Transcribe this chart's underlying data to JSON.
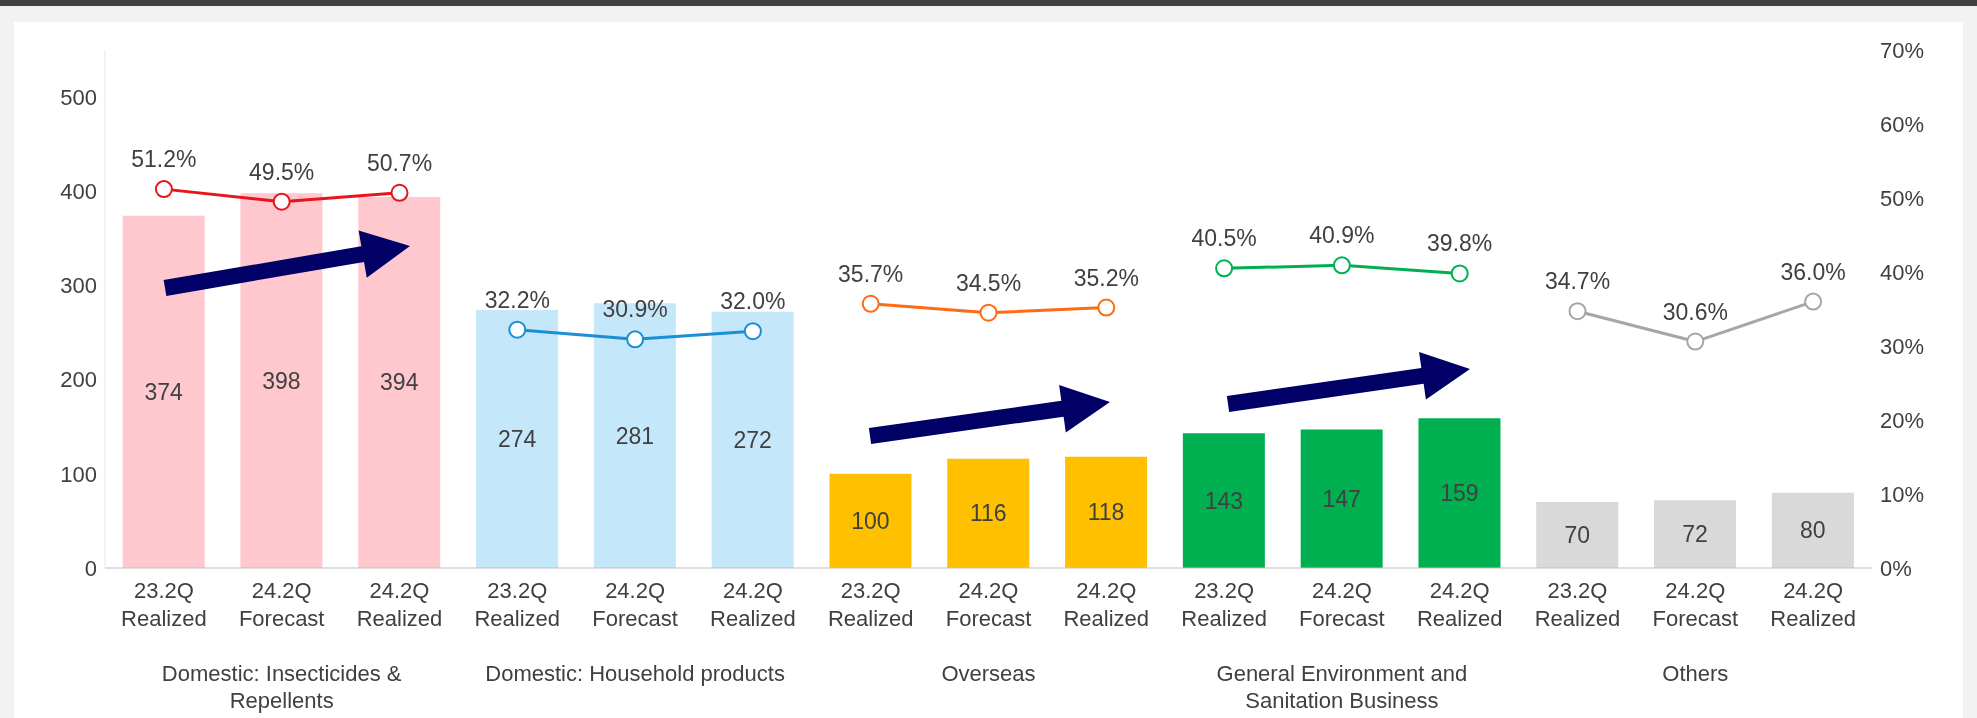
{
  "chart_data": {
    "type": "bar",
    "categories": [
      "23.2Q Realized",
      "24.2Q Forecast",
      "24.2Q Realized",
      "23.2Q Realized",
      "24.2Q Forecast",
      "24.2Q Realized",
      "23.2Q Realized",
      "24.2Q Forecast",
      "24.2Q Realized",
      "23.2Q Realized",
      "24.2Q Forecast",
      "24.2Q Realized",
      "23.2Q Realized",
      "24.2Q Forecast",
      "24.2Q Realized"
    ],
    "series": [
      {
        "values": [
          374,
          398,
          394,
          274,
          281,
          272,
          100,
          116,
          118,
          143,
          147,
          159,
          70,
          72,
          80
        ],
        "colors": [
          "#ffc7ce",
          "#ffc7ce",
          "#ffc7ce",
          "#c5e7fa",
          "#c5e7fa",
          "#c5e7fa",
          "#ffc000",
          "#ffc000",
          "#ffc000",
          "#00b050",
          "#00b050",
          "#00b050",
          "#d9d9d9",
          "#d9d9d9",
          "#d9d9d9"
        ]
      },
      {
        "type": "line",
        "axis": "y2",
        "color": "#e8141c",
        "values": [
          51.2,
          49.5,
          50.7,
          null,
          null,
          null,
          null,
          null,
          null,
          null,
          null,
          null,
          null,
          null,
          null
        ],
        "value_labels": [
          "51.2%",
          "49.5%",
          "50.7%",
          null,
          null,
          null,
          null,
          null,
          null,
          null,
          null,
          null,
          null,
          null,
          null
        ]
      },
      {
        "type": "line",
        "axis": "y2",
        "color": "#1a8fd5",
        "values": [
          null,
          null,
          null,
          32.2,
          30.9,
          32.0,
          null,
          null,
          null,
          null,
          null,
          null,
          null,
          null,
          null
        ],
        "value_labels": [
          null,
          null,
          null,
          "32.2%",
          "30.9%",
          "32.0%",
          null,
          null,
          null,
          null,
          null,
          null,
          null,
          null,
          null
        ]
      },
      {
        "type": "line",
        "axis": "y2",
        "color": "#ff6a13",
        "values": [
          null,
          null,
          null,
          null,
          null,
          null,
          35.7,
          34.5,
          35.2,
          null,
          null,
          null,
          null,
          null,
          null
        ],
        "value_labels": [
          null,
          null,
          null,
          null,
          null,
          null,
          "35.7%",
          "34.5%",
          "35.2%",
          null,
          null,
          null,
          null,
          null,
          null
        ]
      },
      {
        "type": "line",
        "axis": "y2",
        "color": "#00b050",
        "values": [
          null,
          null,
          null,
          null,
          null,
          null,
          null,
          null,
          null,
          40.5,
          40.9,
          39.8,
          null,
          null,
          null
        ],
        "value_labels": [
          null,
          null,
          null,
          null,
          null,
          null,
          null,
          null,
          null,
          "40.5%",
          "40.9%",
          "39.8%",
          null,
          null,
          null
        ]
      },
      {
        "type": "line",
        "axis": "y2",
        "color": "#a6a6a6",
        "values": [
          null,
          null,
          null,
          null,
          null,
          null,
          null,
          null,
          null,
          null,
          null,
          null,
          34.7,
          30.6,
          36.0
        ],
        "value_labels": [
          null,
          null,
          null,
          null,
          null,
          null,
          null,
          null,
          null,
          null,
          null,
          null,
          "34.7%",
          "30.6%",
          "36.0%"
        ]
      }
    ],
    "data_labels": true,
    "ylim": [
      0,
      550
    ],
    "yticks": [
      0,
      100,
      200,
      300,
      400,
      500
    ],
    "y2lim": [
      0,
      70
    ],
    "y2ticks": [
      {
        "value": 0,
        "label": "0%"
      },
      {
        "value": 10,
        "label": "10%"
      },
      {
        "value": 20,
        "label": "20%"
      },
      {
        "value": 30,
        "label": "30%"
      },
      {
        "value": 40,
        "label": "40%"
      },
      {
        "value": 50,
        "label": "50%"
      },
      {
        "value": 60,
        "label": "60%"
      },
      {
        "value": 70,
        "label": "70%"
      }
    ],
    "annotations": [
      "Domestic: Insecticides & Repellents",
      "Domestic: Household products",
      "Overseas",
      "General Environment and Sanitation Business",
      "Others"
    ],
    "marker": "circle"
  }
}
